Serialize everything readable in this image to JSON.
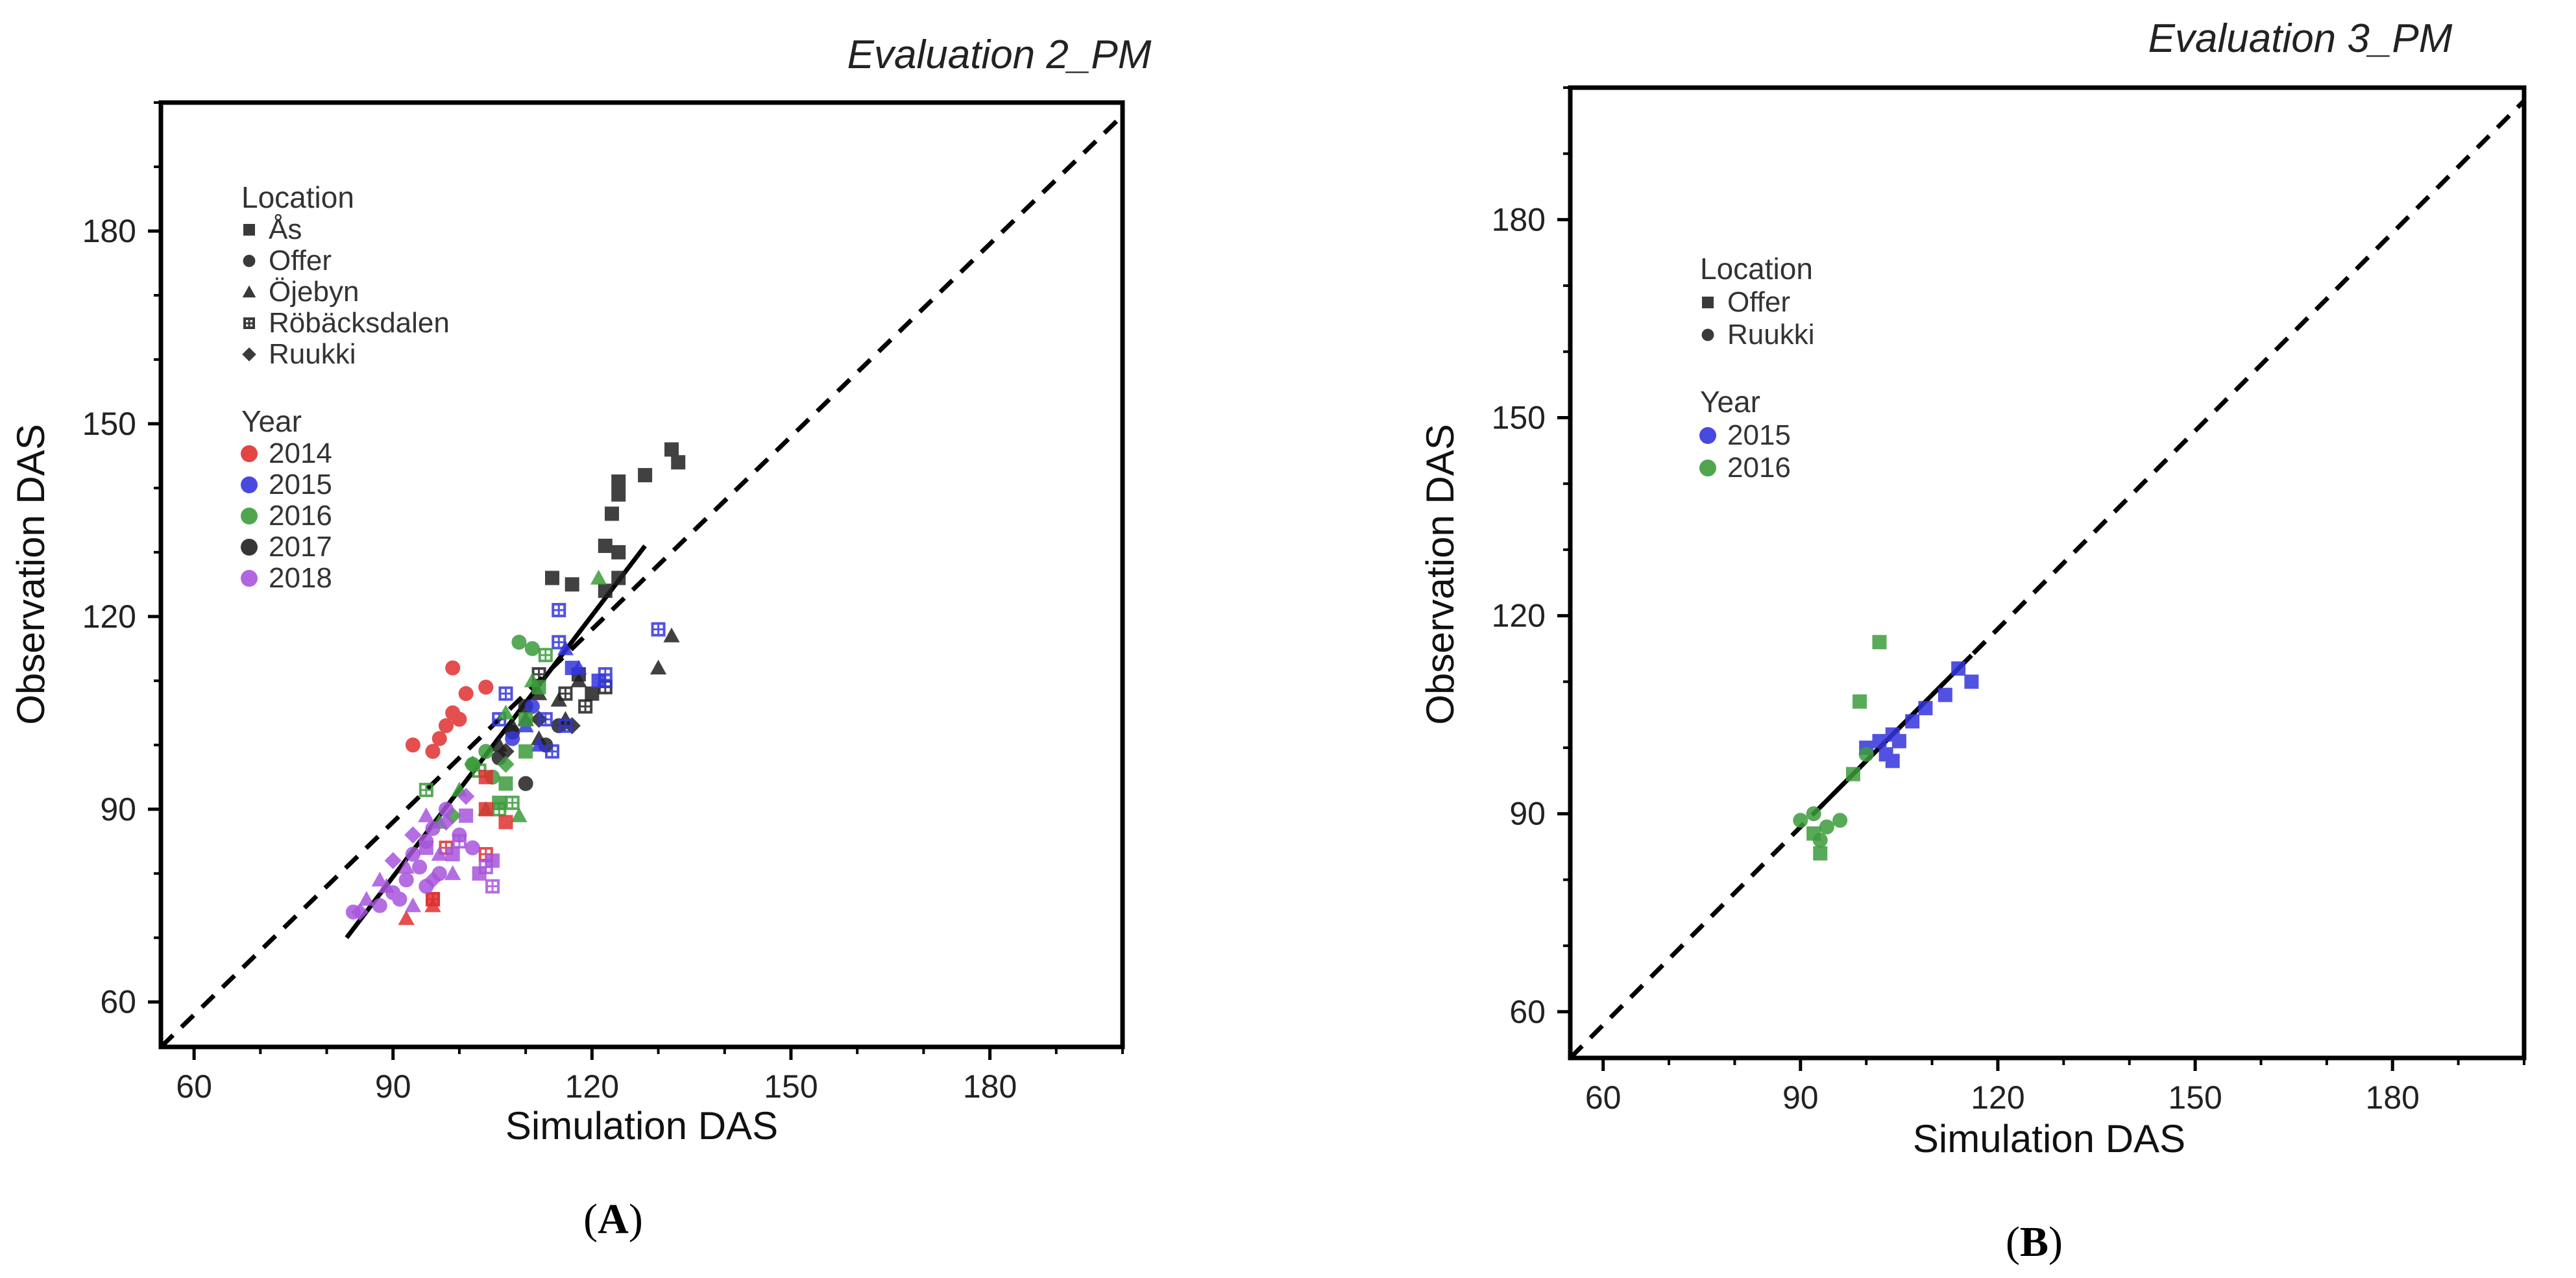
{
  "colors": {
    "2014": "#e03030",
    "2015": "#3535dd",
    "2016": "#3c9c3c",
    "2017": "#202020",
    "2018": "#a855dd",
    "legend_marker": "#3a3a3a",
    "axis": "#000000"
  },
  "chart_data": [
    {
      "type": "scatter",
      "title": "Evaluation 2_PM",
      "panel_label": {
        "open": "(",
        "letter": "A",
        "close": ")"
      },
      "xlabel": "Simulation DAS",
      "ylabel": "Observation DAS",
      "xlim": [
        55,
        200
      ],
      "ylim": [
        53,
        200
      ],
      "xticks": [
        60,
        90,
        120,
        150,
        180
      ],
      "yticks": [
        60,
        90,
        120,
        150,
        180
      ],
      "minor_step": 10,
      "legend": {
        "location_title": "Location",
        "location_items": [
          {
            "label": "Ås",
            "shape": "square"
          },
          {
            "label": "Offer",
            "shape": "circle"
          },
          {
            "label": "Öjebyn",
            "shape": "triangle"
          },
          {
            "label": "Röbäcksdalen",
            "shape": "square-cross"
          },
          {
            "label": "Ruukki",
            "shape": "diamond"
          }
        ],
        "year_title": "Year",
        "year_items": [
          "2014",
          "2015",
          "2016",
          "2017",
          "2018"
        ]
      },
      "identity_line": {
        "from": [
          55,
          53
        ],
        "to": [
          200,
          198
        ],
        "style": "dashed"
      },
      "fit_line": {
        "from": [
          83,
          70
        ],
        "to": [
          128,
          131
        ],
        "style": "solid"
      },
      "series": [
        {
          "year": "2017",
          "location": "Ås",
          "shape": "square",
          "points": [
            [
              124,
              141
            ],
            [
              124,
              139
            ],
            [
              128,
              142
            ],
            [
              132,
              146
            ],
            [
              133,
              144
            ],
            [
              123,
              136
            ],
            [
              122,
              131
            ],
            [
              124,
              130
            ],
            [
              114,
              126
            ],
            [
              117,
              125
            ],
            [
              122,
              124
            ],
            [
              124,
              126
            ],
            [
              120,
              108
            ],
            [
              118,
              111
            ]
          ]
        },
        {
          "year": "2017",
          "location": "Öjebyn",
          "shape": "triangle",
          "points": [
            [
              132,
              117
            ],
            [
              130,
              112
            ],
            [
              118,
              110
            ],
            [
              115,
              107
            ],
            [
              110,
              104
            ],
            [
              112,
              108
            ],
            [
              106,
              100
            ],
            [
              108,
              103
            ],
            [
              112,
              101
            ],
            [
              116,
              104
            ]
          ]
        },
        {
          "year": "2017",
          "location": "Offer",
          "shape": "circle",
          "points": [
            [
              110,
              94
            ],
            [
              106,
              98
            ],
            [
              113,
              100
            ],
            [
              108,
              102
            ],
            [
              110,
              106
            ],
            [
              115,
              103
            ]
          ]
        },
        {
          "year": "2017",
          "location": "Röbäcksdalen",
          "shape": "square-cross",
          "points": [
            [
              112,
              111
            ],
            [
              116,
              108
            ],
            [
              122,
              109
            ],
            [
              119,
              106
            ]
          ]
        },
        {
          "year": "2017",
          "location": "Ruukki",
          "shape": "diamond",
          "points": [
            [
              107,
              99
            ],
            [
              112,
              104
            ],
            [
              117,
              103
            ]
          ]
        },
        {
          "year": "2015",
          "location": "Röbäcksdalen",
          "shape": "square-cross",
          "points": [
            [
              115,
              121
            ],
            [
              130,
              118
            ],
            [
              122,
              111
            ],
            [
              115,
              116
            ],
            [
              122,
              110
            ],
            [
              107,
              108
            ],
            [
              114,
              99
            ],
            [
              113,
              104
            ],
            [
              116,
              103
            ],
            [
              106,
              104
            ]
          ]
        },
        {
          "year": "2015",
          "location": "Öjebyn",
          "shape": "triangle",
          "points": [
            [
              118,
              112
            ],
            [
              116,
              115
            ],
            [
              110,
              103
            ],
            [
              112,
              100
            ]
          ]
        },
        {
          "year": "2015",
          "location": "Ås",
          "shape": "square",
          "points": [
            [
              117,
              112
            ],
            [
              121,
              110
            ]
          ]
        },
        {
          "year": "2015",
          "location": "Offer",
          "shape": "circle",
          "points": [
            [
              108,
              101
            ],
            [
              111,
              106
            ]
          ]
        },
        {
          "year": "2016",
          "location": "Öjebyn",
          "shape": "triangle",
          "points": [
            [
              121,
              126
            ],
            [
              111,
              110
            ],
            [
              107,
              105
            ],
            [
              100,
              93
            ],
            [
              104,
              90
            ],
            [
              97,
              88
            ],
            [
              109,
              89
            ]
          ]
        },
        {
          "year": "2016",
          "location": "Ås",
          "shape": "square",
          "points": [
            [
              112,
              109
            ],
            [
              110,
              104
            ],
            [
              110,
              99
            ],
            [
              106,
              91
            ],
            [
              107,
              94
            ]
          ]
        },
        {
          "year": "2016",
          "location": "Offer",
          "shape": "circle",
          "points": [
            [
              109,
              116
            ],
            [
              111,
              115
            ],
            [
              104,
              99
            ],
            [
              102,
              97
            ],
            [
              105,
              95
            ]
          ]
        },
        {
          "year": "2016",
          "location": "Röbäcksdalen",
          "shape": "square-cross",
          "points": [
            [
              113,
              114
            ],
            [
              95,
              93
            ],
            [
              106,
              90
            ],
            [
              108,
              91
            ],
            [
              103,
              96
            ]
          ]
        },
        {
          "year": "2016",
          "location": "Ruukki",
          "shape": "diamond",
          "points": [
            [
              102,
              97
            ],
            [
              99,
              89
            ],
            [
              107,
              97
            ]
          ]
        },
        {
          "year": "2014",
          "location": "Offer",
          "shape": "circle",
          "points": [
            [
              99,
              112
            ],
            [
              104,
              109
            ],
            [
              101,
              108
            ],
            [
              99,
              105
            ],
            [
              100,
              104
            ],
            [
              97,
              101
            ],
            [
              93,
              100
            ],
            [
              96,
              99
            ],
            [
              98,
              103
            ]
          ]
        },
        {
          "year": "2014",
          "location": "Ås",
          "shape": "square",
          "points": [
            [
              104,
              95
            ],
            [
              107,
              88
            ],
            [
              104,
              90
            ],
            [
              96,
              76
            ]
          ]
        },
        {
          "year": "2014",
          "location": "Öjebyn",
          "shape": "triangle",
          "points": [
            [
              96,
              75
            ],
            [
              92,
              73
            ]
          ]
        },
        {
          "year": "2014",
          "location": "Röbäcksdalen",
          "shape": "square-cross",
          "points": [
            [
              96,
              76
            ],
            [
              98,
              84
            ],
            [
              104,
              83
            ]
          ]
        },
        {
          "year": "2018",
          "location": "Offer",
          "shape": "circle",
          "points": [
            [
              84,
              74
            ],
            [
              88,
              75
            ],
            [
              90,
              77
            ],
            [
              92,
              79
            ],
            [
              94,
              81
            ],
            [
              93,
              83
            ],
            [
              95,
              85
            ],
            [
              96,
              87
            ],
            [
              98,
              90
            ],
            [
              100,
              86
            ],
            [
              102,
              84
            ],
            [
              97,
              80
            ],
            [
              95,
              78
            ],
            [
              91,
              76
            ]
          ]
        },
        {
          "year": "2018",
          "location": "Öjebyn",
          "shape": "triangle",
          "points": [
            [
              86,
              76
            ],
            [
              89,
              78
            ],
            [
              93,
              75
            ],
            [
              95,
              89
            ],
            [
              97,
              83
            ],
            [
              99,
              80
            ],
            [
              92,
              81
            ],
            [
              88,
              79
            ]
          ]
        },
        {
          "year": "2018",
          "location": "Ruukki",
          "shape": "diamond",
          "points": [
            [
              90,
              82
            ],
            [
              93,
              86
            ],
            [
              96,
              79
            ],
            [
              98,
              88
            ],
            [
              101,
              92
            ],
            [
              85,
              74
            ]
          ]
        },
        {
          "year": "2018",
          "location": "Ås",
          "shape": "square",
          "points": [
            [
              95,
              84
            ],
            [
              99,
              83
            ],
            [
              103,
              80
            ],
            [
              105,
              82
            ],
            [
              101,
              89
            ]
          ]
        },
        {
          "year": "2018",
          "location": "Röbäcksdalen",
          "shape": "square-cross",
          "points": [
            [
              104,
              81
            ],
            [
              100,
              85
            ],
            [
              105,
              78
            ]
          ]
        }
      ]
    },
    {
      "type": "scatter",
      "title": "Evaluation 3_PM",
      "panel_label": {
        "open": "(",
        "letter": "B",
        "close": ")"
      },
      "xlabel": "Simulation DAS",
      "ylabel": "Observation DAS",
      "xlim": [
        55,
        200
      ],
      "ylim": [
        53,
        200
      ],
      "xticks": [
        60,
        90,
        120,
        150,
        180
      ],
      "yticks": [
        60,
        90,
        120,
        150,
        180
      ],
      "minor_step": 10,
      "legend": {
        "location_title": "Location",
        "location_items": [
          {
            "label": "Offer",
            "shape": "square"
          },
          {
            "label": "Ruukki",
            "shape": "circle"
          }
        ],
        "year_title": "Year",
        "year_items": [
          "2015",
          "2016"
        ]
      },
      "identity_line": {
        "from": [
          55,
          53
        ],
        "to": [
          200,
          198
        ],
        "style": "dashed"
      },
      "fit_line": {
        "from": [
          93,
          91
        ],
        "to": [
          116,
          114
        ],
        "style": "solid"
      },
      "series": [
        {
          "year": "2015",
          "location": "Offer",
          "shape": "square",
          "points": [
            [
              100,
              100
            ],
            [
              102,
              101
            ],
            [
              104,
              102
            ],
            [
              105,
              101
            ],
            [
              104,
              98
            ],
            [
              109,
              106
            ],
            [
              112,
              108
            ],
            [
              114,
              112
            ],
            [
              116,
              110
            ],
            [
              103,
              99
            ],
            [
              107,
              104
            ]
          ]
        },
        {
          "year": "2016",
          "location": "Offer",
          "shape": "square",
          "points": [
            [
              102,
              116
            ],
            [
              99,
              107
            ],
            [
              93,
              84
            ],
            [
              92,
              87
            ],
            [
              98,
              96
            ]
          ]
        },
        {
          "year": "2016",
          "location": "Ruukki",
          "shape": "circle",
          "points": [
            [
              90,
              89
            ],
            [
              92,
              90
            ],
            [
              94,
              88
            ],
            [
              96,
              89
            ],
            [
              93,
              86
            ],
            [
              100,
              99
            ]
          ]
        }
      ]
    }
  ]
}
